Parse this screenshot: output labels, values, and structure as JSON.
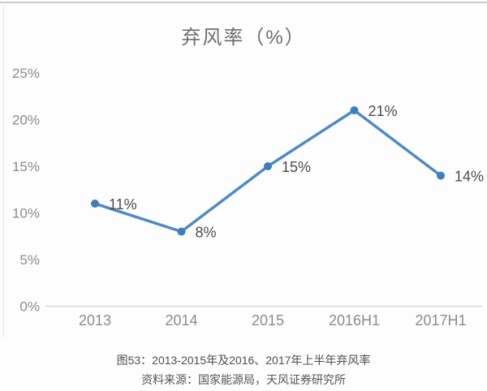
{
  "chart_data": {
    "type": "line",
    "title": "弃风率（%）",
    "categories": [
      "2013",
      "2014",
      "2015",
      "2016H1",
      "2017H1"
    ],
    "values": [
      11,
      8,
      15,
      21,
      14
    ],
    "data_labels": [
      "11%",
      "8%",
      "15%",
      "21%",
      "14%"
    ],
    "xlabel": "",
    "ylabel": "",
    "ylim": [
      0,
      25
    ],
    "ytick_interval": 5,
    "ytick_labels": [
      "0%",
      "5%",
      "10%",
      "15%",
      "20%",
      "25%"
    ],
    "grid": false,
    "legend": "none",
    "colors": {
      "line": "#4e8bc6",
      "marker": "#3d7ec0",
      "axis_line": "#d9d9d9",
      "tick_label": "#8c8c8c",
      "data_label": "#4d4d4d"
    }
  },
  "caption": {
    "line1": "图53：2013-2015年及2016、2017年上半年弃风率",
    "line2": "资料来源：国家能源局，天风证券研究所"
  }
}
